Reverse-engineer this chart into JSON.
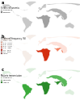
{
  "panel_labels": [
    "a",
    "b",
    "c"
  ],
  "legend_a_title": "Sickle cell anemia",
  "legend_a_items": [
    "Occurrence",
    "Common"
  ],
  "legend_a_colors": [
    "#c0c0c0",
    "#808080"
  ],
  "legend_b_title": "Sickle cell frequency (%)",
  "legend_b_items": [
    "<0.1 - 1%",
    "1.0 - 2.5%",
    "2.5 - 5.0%",
    "5.0 - 7.5%",
    "7.5 - 10%",
    "10 - 15%",
    "15 - 20%",
    ">20%"
  ],
  "legend_b_colors": [
    "#fde8e0",
    "#fbc4b0",
    "#f59a80",
    "#ee6e50",
    "#e04030",
    "#c42010",
    "#981008",
    "#6b0505"
  ],
  "legend_c_title": "Malaria transmission",
  "legend_c_items": [
    "Occasional",
    "Moderate",
    "Intense"
  ],
  "legend_c_colors": [
    "#c8e6c0",
    "#72c265",
    "#2a8a2a"
  ],
  "ocean_color": "#e8eff7",
  "land_base_a": "#e0e0e0",
  "land_base_b": "#f5ede8",
  "land_base_c": "#ddeedd",
  "fig_bg": "#ffffff"
}
